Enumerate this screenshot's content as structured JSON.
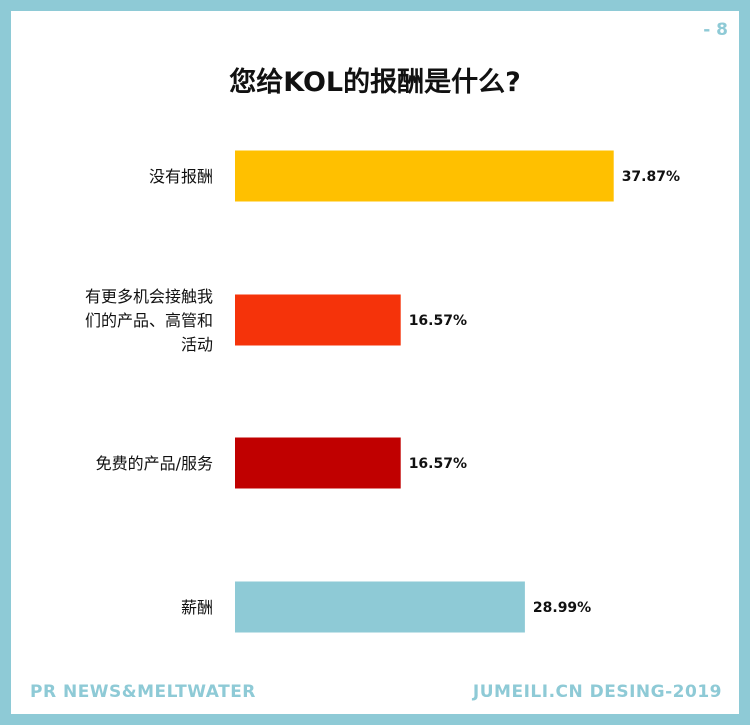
{
  "page_number": "- 8",
  "footer": {
    "left": "PR NEWS&MELTWATER",
    "right": "JUMEILI.CN DESING-2019"
  },
  "chart_data": {
    "type": "bar",
    "orientation": "horizontal",
    "title": "您给KOL的报酬是什么?",
    "categories": [
      "没有报酬",
      "有更多机会接触我们的产品、高管和活动",
      "免费的产品/服务",
      "薪酬"
    ],
    "category_label_lines": [
      [
        "没有报酬"
      ],
      [
        "有更多机会接触我",
        "们的产品、高管和",
        "活动"
      ],
      [
        "免费的产品/服务"
      ],
      [
        "薪酬"
      ]
    ],
    "values": [
      37.87,
      16.57,
      16.57,
      28.99
    ],
    "value_labels": [
      "37.87%",
      "16.57%",
      "16.57%",
      "28.99%"
    ],
    "colors": [
      "#ffc000",
      "#f5330a",
      "#c00000",
      "#8ecad6"
    ],
    "xlim": [
      0,
      50
    ],
    "grid": false,
    "legend": "none"
  }
}
